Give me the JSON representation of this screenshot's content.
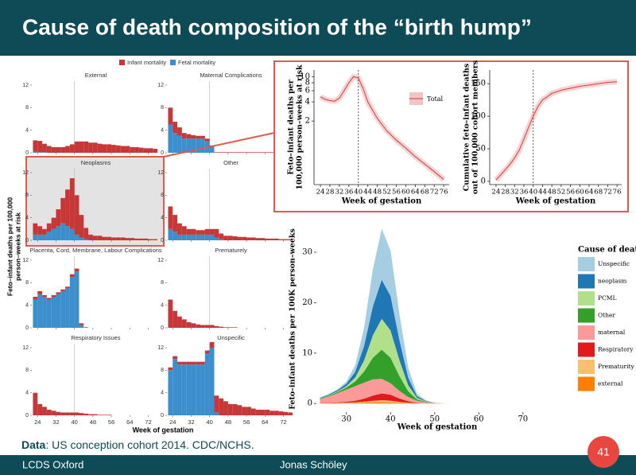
{
  "header": {
    "title": "Cause of death composition of the “birth hump”"
  },
  "source": {
    "label": "Data",
    "text": ": US conception cohort 2014. CDC/NCHS."
  },
  "footer": {
    "left": "LCDS Oxford",
    "center": "Jonas Schöley",
    "page": 41
  },
  "chart_data": [
    {
      "type": "bar",
      "panels": [
        "External",
        "Maternal Complications",
        "Neoplasms",
        "Other",
        "Placenta, Cord, Membrane, Labour Complications",
        "Prematurely",
        "Respiratory Issues",
        "Unspecific"
      ],
      "ylabel": [
        "Feto–infant deaths per 100,000",
        "person–weeks at risk"
      ],
      "xlabel": "Week of gestation",
      "bins": [
        22,
        24,
        26,
        28,
        30,
        32,
        34,
        36,
        38,
        40,
        42,
        44,
        46,
        48,
        50,
        52,
        54,
        56,
        58,
        60,
        62,
        64,
        66,
        68,
        70,
        72,
        74,
        76
      ],
      "xlim": [
        21.5,
        77
      ],
      "ylim": [
        0,
        12.7
      ],
      "xticks": [
        24,
        32,
        40,
        48,
        56,
        64,
        72
      ],
      "yticks": [
        0,
        4,
        8,
        12
      ],
      "vline": 40,
      "series": [
        {
          "name": "Infant mortality",
          "color": "#c83737",
          "values": [
            [
              2,
              2,
              1.5,
              1.2,
              1,
              1,
              1,
              1.2,
              1.5,
              2,
              2,
              2,
              1.8,
              1.8,
              1.6,
              1.5,
              1.5,
              1.4,
              1.3,
              1.2,
              1.2,
              1,
              1,
              0.9,
              0.8,
              0.8,
              0.7
            ],
            [
              3,
              2,
              1.5,
              1,
              0.8,
              0.6,
              0.5,
              0.5,
              0.5,
              0.3,
              0.1,
              0.1,
              0.1,
              0.1,
              0.1,
              0.1,
              0.1,
              0.1,
              0.1,
              0.1,
              0.1,
              0.1,
              0.1,
              0.1,
              0.1,
              0.1,
              0.1
            ],
            [
              2,
              1.5,
              1,
              1.5,
              2,
              3,
              4.5,
              6.5,
              9,
              7,
              4,
              2,
              1,
              0.8,
              0.8,
              0.6,
              0.6,
              0.5,
              0.5,
              0.5,
              0.4,
              0.4,
              0.3,
              0.3,
              0.3,
              0.2,
              0.2
            ],
            [
              4,
              3,
              2,
              1.5,
              1,
              1,
              0.8,
              0.8,
              1,
              1,
              1.5,
              1,
              0.8,
              0.8,
              0.7,
              0.6,
              0.6,
              0.5,
              0.5,
              0.4,
              0.4,
              0.3,
              0.3,
              0.3,
              0.2,
              0.2,
              0.2
            ],
            [
              0.5,
              0.5,
              0.3,
              0.3,
              0.3,
              0.3,
              0.3,
              0.3,
              0.5,
              0.5,
              0.3,
              0.1,
              0,
              0,
              0,
              0,
              0,
              0,
              0,
              0,
              0,
              0,
              0,
              0,
              0,
              0,
              0
            ],
            [
              5,
              3,
              2,
              1.5,
              1,
              0.8,
              0.6,
              0.5,
              0.5,
              0.5,
              0.3,
              0.2,
              0.1,
              0.1,
              0.1,
              0,
              0,
              0,
              0,
              0,
              0,
              0,
              0,
              0,
              0,
              0,
              0
            ],
            [
              4,
              2,
              1.5,
              1,
              0.8,
              0.6,
              0.5,
              0.5,
              0.5,
              0.5,
              0.4,
              0.3,
              0.2,
              0.2,
              0.1,
              0.1,
              0.1,
              0,
              0,
              0,
              0,
              0,
              0,
              0,
              0,
              0,
              0
            ],
            [
              0.5,
              0.5,
              0.5,
              0.5,
              0.5,
              0.5,
              0.5,
              0.5,
              0.5,
              1,
              3,
              3,
              2.5,
              2,
              2,
              1.8,
              1.5,
              1.5,
              1.2,
              1,
              1,
              1,
              0.8,
              0.8,
              0.7,
              0.6,
              0.5
            ]
          ]
        },
        {
          "name": "Fetal mortality",
          "color": "#3b8fcc",
          "values": [
            [
              0.2,
              0.1,
              0.1,
              0,
              0,
              0,
              0,
              0,
              0,
              0,
              0,
              0,
              0,
              0,
              0,
              0,
              0,
              0,
              0,
              0,
              0,
              0,
              0,
              0,
              0,
              0,
              0
            ],
            [
              5,
              3.5,
              3,
              2.5,
              2.5,
              2.5,
              2.5,
              2.5,
              2,
              1,
              0,
              0,
              0,
              0,
              0,
              0,
              0,
              0,
              0,
              0,
              0,
              0,
              0,
              0,
              0,
              0,
              0
            ],
            [
              1,
              1,
              1,
              1.5,
              2,
              2.5,
              3,
              2.5,
              2,
              1,
              0.5,
              0.2,
              0,
              0,
              0,
              0,
              0,
              0,
              0,
              0,
              0,
              0,
              0,
              0,
              0,
              0,
              0
            ],
            [
              2,
              1.5,
              1,
              1,
              1,
              1,
              1,
              1,
              1,
              1,
              0.5,
              0.2,
              0,
              0,
              0,
              0,
              0,
              0,
              0,
              0,
              0,
              0,
              0,
              0,
              0,
              0,
              0
            ],
            [
              5,
              6,
              5.5,
              5,
              5.5,
              6,
              6.5,
              7,
              9,
              10,
              0.5,
              0,
              0,
              0,
              0,
              0,
              0,
              0,
              0,
              0,
              0,
              0,
              0,
              0,
              0,
              0,
              0
            ],
            [
              0,
              0,
              0,
              0,
              0,
              0,
              0,
              0,
              0,
              0,
              0,
              0,
              0,
              0,
              0,
              0,
              0,
              0,
              0,
              0,
              0,
              0,
              0,
              0,
              0,
              0,
              0
            ],
            [
              0,
              0,
              0,
              0,
              0,
              0,
              0,
              0,
              0,
              0,
              0,
              0,
              0,
              0,
              0,
              0,
              0,
              0,
              0,
              0,
              0,
              0,
              0,
              0,
              0,
              0,
              0
            ],
            [
              8,
              10,
              9,
              9,
              9,
              9,
              9,
              9,
              11,
              12,
              0.5,
              0,
              0,
              0,
              0,
              0,
              0,
              0,
              0,
              0,
              0,
              0,
              0,
              0,
              0,
              0,
              0
            ]
          ]
        }
      ]
    },
    {
      "type": "line",
      "yscale": "log",
      "ylabel": [
        "Feto–infant deaths per",
        "100,000 person–weeks at risk"
      ],
      "xlabel": "Week of gestation",
      "x": [
        24,
        26,
        28,
        30,
        32,
        34,
        36,
        38,
        40,
        42,
        44,
        48,
        52,
        56,
        60,
        64,
        68,
        72,
        76
      ],
      "series": [
        {
          "name": "Total",
          "color": "#d63a3a",
          "values": [
            4.8,
            4.4,
            4.2,
            4.1,
            4.6,
            6,
            8,
            10,
            9.5,
            6.5,
            4,
            2.2,
            1.4,
            1,
            0.75,
            0.55,
            0.42,
            0.32,
            0.24
          ]
        }
      ],
      "xlim": [
        21.3,
        78.3
      ],
      "ylim": [
        0.2,
        12.7
      ],
      "xticks": [
        24,
        28,
        32,
        36,
        40,
        44,
        48,
        52,
        56,
        60,
        64,
        68,
        72,
        76
      ],
      "yticks": [
        2,
        4,
        6,
        8,
        10
      ],
      "vline": 40
    },
    {
      "type": "line",
      "ylabel": [
        "Cumulative feto–infant deaths",
        "out of 100,000 cohort members"
      ],
      "xlabel": "Week of gestation",
      "x": [
        24,
        26,
        28,
        30,
        32,
        34,
        36,
        38,
        40,
        42,
        44,
        48,
        52,
        56,
        60,
        64,
        68,
        72,
        76
      ],
      "series": [
        {
          "color": "#d63a3a",
          "values": [
            2,
            10,
            18,
            26,
            36,
            48,
            65,
            83,
            100,
            115,
            125,
            135,
            140,
            143,
            146,
            148,
            150,
            152,
            153
          ]
        }
      ],
      "xlim": [
        21.3,
        78
      ],
      "ylim": [
        -5,
        171
      ],
      "xticks": [
        24,
        28,
        32,
        36,
        40,
        44,
        48,
        52,
        56,
        60,
        64,
        68,
        72,
        76
      ],
      "yticks": [
        0,
        50,
        100,
        150
      ],
      "vline": 40
    },
    {
      "type": "area",
      "ylabel": "Feto–infant deaths per 100K person–weeks",
      "xlabel": "Week of gestation",
      "legend_title": "Cause of death",
      "x": [
        24,
        26,
        28,
        30,
        32,
        34,
        36,
        38,
        40,
        42,
        44,
        46,
        48,
        50,
        52,
        54,
        56
      ],
      "series": [
        {
          "name": "Unspecific",
          "color": "#a6cee3",
          "values": [
            0.08,
            0.12,
            0.18,
            0.44,
            1.29,
            3.6,
            7.39,
            10.14,
            8.98,
            5.22,
            1.98,
            0.44,
            0.12,
            0.01,
            0,
            0,
            0
          ]
        },
        {
          "name": "neoplasm",
          "color": "#1f78b4",
          "values": [
            0.1,
            0.16,
            0.24,
            0.47,
            1.13,
            2.88,
            5.71,
            7.75,
            6.84,
            3.99,
            1.53,
            0.36,
            0.11,
            0.01,
            0,
            0,
            0
          ]
        },
        {
          "name": "PCML",
          "color": "#b2df8a",
          "values": [
            0.05,
            0.08,
            0.12,
            0.28,
            0.79,
            2.18,
            4.45,
            6.1,
            5.4,
            3.14,
            1.19,
            0.27,
            0.07,
            0.01,
            0,
            0,
            0
          ]
        },
        {
          "name": "Other",
          "color": "#33a02c",
          "values": [
            0.1,
            0.16,
            0.24,
            0.43,
            0.93,
            2.22,
            4.29,
            5.77,
            5.08,
            2.97,
            1.15,
            0.28,
            0.09,
            0.01,
            0,
            0,
            0
          ]
        },
        {
          "name": "maternal",
          "color": "#fb9a99",
          "values": [
            0.75,
            1.23,
            1.83,
            2.41,
            2.9,
            3.17,
            3.21,
            2.9,
            2.27,
            1.49,
            0.85,
            0.44,
            0.22,
            0.09,
            0.03,
            0,
            0
          ]
        },
        {
          "name": "Respiratory",
          "color": "#e31a1c",
          "values": [
            0.05,
            0.08,
            0.12,
            0.18,
            0.31,
            0.6,
            1.04,
            1.35,
            1.18,
            0.69,
            0.28,
            0.08,
            0.02,
            0.01,
            0,
            0,
            0
          ]
        },
        {
          "name": "Prematurity",
          "color": "#fdbf6f",
          "values": [
            0.03,
            0.04,
            0.06,
            0.09,
            0.13,
            0.2,
            0.31,
            0.38,
            0.32,
            0.19,
            0.09,
            0.02,
            0.01,
            0,
            0,
            0,
            0
          ]
        },
        {
          "name": "external",
          "color": "#ff7f00",
          "values": [
            0.03,
            0.04,
            0.06,
            0.08,
            0.12,
            0.17,
            0.24,
            0.28,
            0.24,
            0.14,
            0.07,
            0.02,
            0.01,
            0,
            0,
            0,
            0
          ]
        }
      ],
      "xlim": [
        23.2,
        80.3
      ],
      "ylim": [
        -1.7,
        35.2
      ],
      "xticks": [
        30,
        40,
        50,
        60,
        70
      ],
      "yticks": [
        0,
        10,
        20,
        30
      ]
    }
  ]
}
